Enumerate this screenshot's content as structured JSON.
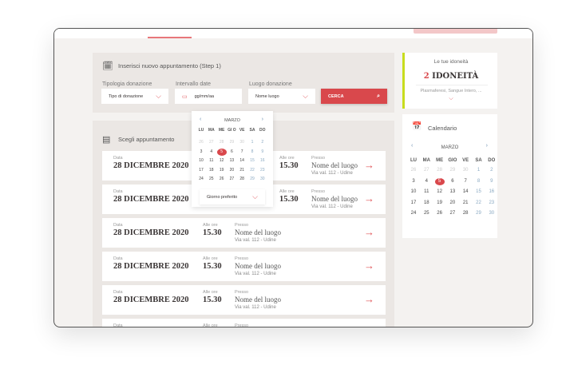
{
  "nav": {
    "active_tab": "",
    "action": ""
  },
  "step1": {
    "title": "Inserisci nuovo appuntamento (Step 1)",
    "tipologia_label": "Tipologia donazione",
    "tipologia_value": "Tipo di donazione",
    "intervallo_label": "Intervallo date",
    "intervallo_placeholder": "gg/mm/aa",
    "luogo_label": "Luogo donazione",
    "luogo_value": "Nome luogo",
    "search_label": "CERCA"
  },
  "popup": {
    "month": "MARZO",
    "weekdays": [
      "LU",
      "MA",
      "ME",
      "GI O",
      "VE",
      "SA",
      "DO"
    ],
    "preferred_label": "Giorno preferito"
  },
  "list": {
    "title": "Scegli appuntamento",
    "rows": [
      {
        "date_label": "Data",
        "date": "28 DICEMBRE 2020",
        "time_label": "Alle ore",
        "time": "15.30",
        "place_label": "Presso",
        "place": "Nome del luogo",
        "address": "Via val. 112 - Udine"
      },
      {
        "date_label": "Data",
        "date": "28 DICEMBRE 2020",
        "time_label": "Alle ore",
        "time": "15.30",
        "place_label": "Presso",
        "place": "Nome del luogo",
        "address": "Via val. 112 - Udine"
      },
      {
        "date_label": "Data",
        "date": "28 DICEMBRE 2020",
        "time_label": "Alle ore",
        "time": "15.30",
        "place_label": "Presso",
        "place": "Nome del luogo",
        "address": "Via val. 112 - Udine"
      },
      {
        "date_label": "Data",
        "date": "28 DICEMBRE 2020",
        "time_label": "Alle ore",
        "time": "15.30",
        "place_label": "Presso",
        "place": "Nome del luogo",
        "address": "Via val. 112 - Udine"
      },
      {
        "date_label": "Data",
        "date": "28 DICEMBRE 2020",
        "time_label": "Alle ore",
        "time": "15.30",
        "place_label": "Presso",
        "place": "Nome del luogo",
        "address": "Via val. 112 - Udine"
      },
      {
        "date_label": "Data",
        "date": "",
        "time_label": "Alle ore",
        "time": "",
        "place_label": "Presso",
        "place": "",
        "address": ""
      }
    ]
  },
  "idoneita": {
    "title": "Le tue idoneità",
    "count": "2",
    "label": "IDONEITÀ",
    "detail": "Plasmaferesi, Sangue Intero, ..."
  },
  "calendar": {
    "title": "Calendario",
    "month": "MARZO",
    "weekdays": [
      "LU",
      "MA",
      "ME",
      "GIO",
      "VE",
      "SA",
      "DO"
    ],
    "weeks": [
      [
        "26",
        "27",
        "28",
        "29",
        "30",
        "1",
        "2"
      ],
      [
        "3",
        "4",
        "5",
        "6",
        "7",
        "8",
        "9"
      ],
      [
        "10",
        "11",
        "12",
        "13",
        "14",
        "15",
        "16"
      ],
      [
        "17",
        "18",
        "19",
        "20",
        "21",
        "22",
        "23"
      ],
      [
        "24",
        "25",
        "26",
        "27",
        "28",
        "29",
        "30"
      ]
    ],
    "selected": "5"
  },
  "colors": {
    "accent": "#d9484c",
    "lime": "#c8dc1e",
    "panel": "#ebe7e4"
  }
}
